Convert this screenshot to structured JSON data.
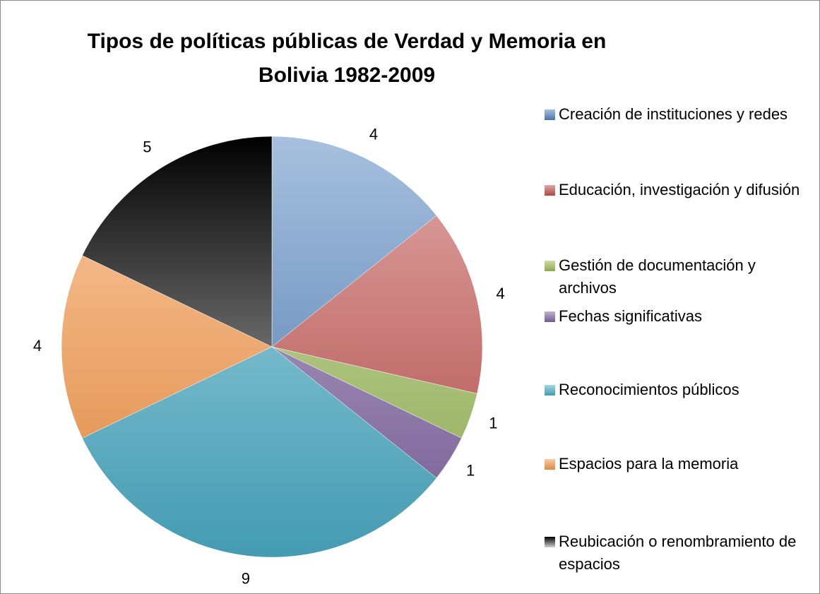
{
  "chart_data": {
    "type": "pie",
    "title": "Tipos de políticas públicas de Verdad y Memoria en Bolivia 1982-2009",
    "categories": [
      "Creación de instituciones y redes",
      "Educación, investigación y difusión",
      "Gestión de documentación y archivos",
      "Fechas significativas",
      "Reconocimientos públicos",
      "Espacios para la memoria",
      "Reubicación o renombramiento de espacios"
    ],
    "values": [
      4,
      4,
      1,
      1,
      9,
      4,
      5
    ],
    "colors": [
      "#4f81bd",
      "#c0504d",
      "#9bbb59",
      "#8064a2",
      "#4bacc6",
      "#f79646",
      "#000000"
    ],
    "legend": "right"
  }
}
